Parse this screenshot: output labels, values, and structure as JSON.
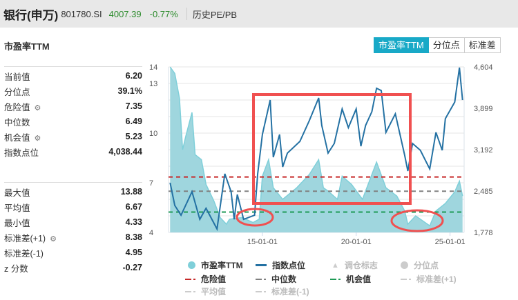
{
  "header": {
    "title": "银行(申万)",
    "code": "801780.SI",
    "price": "4007.39",
    "change": "-0.77%",
    "link": "历史PE/PB"
  },
  "subtitle": "市盈率TTM",
  "tabs": [
    {
      "label": "市盈率TTM",
      "active": true
    },
    {
      "label": "分位点",
      "active": false
    },
    {
      "label": "标准差",
      "active": false
    }
  ],
  "stats_top": [
    {
      "label": "当前值",
      "value": "6.20",
      "gear": false
    },
    {
      "label": "分位点",
      "value": "39.1%",
      "gear": false
    },
    {
      "label": "危险值",
      "value": "7.35",
      "gear": true
    },
    {
      "label": "中位数",
      "value": "6.49",
      "gear": false
    },
    {
      "label": "机会值",
      "value": "5.23",
      "gear": true
    },
    {
      "label": "指数点位",
      "value": "4,038.44",
      "gear": false
    }
  ],
  "stats_bottom": [
    {
      "label": "最大值",
      "value": "13.88",
      "gear": false
    },
    {
      "label": "平均值",
      "value": "6.67",
      "gear": false
    },
    {
      "label": "最小值",
      "value": "4.33",
      "gear": false
    },
    {
      "label": "标准差(+1)",
      "value": "8.38",
      "gear": true
    },
    {
      "label": "标准差(-1)",
      "value": "4.95",
      "gear": false
    },
    {
      "label": "z 分数",
      "value": "-0.27",
      "gear": false
    }
  ],
  "legend": [
    {
      "label": "市盈率TTM",
      "marker": "circle",
      "color": "#7fcfd9",
      "enabled": true
    },
    {
      "label": "指数点位",
      "marker": "line",
      "color": "#2471a3",
      "enabled": true
    },
    {
      "label": "调仓标志",
      "marker": "triangle",
      "color": "#cccccc",
      "enabled": false
    },
    {
      "label": "分位点",
      "marker": "circle",
      "color": "#cccccc",
      "enabled": false
    },
    {
      "label": "危险值",
      "marker": "dash",
      "color": "#c62828",
      "enabled": true
    },
    {
      "label": "中位数",
      "marker": "dash",
      "color": "#808080",
      "enabled": true
    },
    {
      "label": "机会值",
      "marker": "dash",
      "color": "#1e9a55",
      "enabled": true
    },
    {
      "label": "标准差(+1)",
      "marker": "dash",
      "color": "#cccccc",
      "enabled": false
    },
    {
      "label": "平均值",
      "marker": "dash",
      "color": "#cccccc",
      "enabled": false
    },
    {
      "label": "标准差(-1)",
      "marker": "dash",
      "color": "#cccccc",
      "enabled": false
    }
  ],
  "chart_data": {
    "type": "area+line",
    "x_range": [
      "2010-01",
      "2025-09"
    ],
    "x_ticks": [
      "15-01-01",
      "20-01-01",
      "25-01-01"
    ],
    "y_left": {
      "range": [
        4,
        14
      ],
      "ticks": [
        "14",
        "13",
        "10",
        "7",
        "4"
      ]
    },
    "y_right": {
      "range": [
        1778,
        4604
      ],
      "ticks": [
        "4,604",
        "3,899",
        "3,192",
        "2,485",
        "1,778"
      ]
    },
    "reference_lines": {
      "danger": 7.35,
      "median": 6.49,
      "opportunity": 5.23
    },
    "series": [
      {
        "name": "市盈率TTM",
        "axis": "left",
        "type": "area",
        "color": "#7fcfd9",
        "points": [
          [
            "2010-02",
            14
          ],
          [
            "2010-05",
            13.6
          ],
          [
            "2010-08",
            12.1
          ],
          [
            "2010-10",
            9
          ],
          [
            "2010-12",
            9.8
          ],
          [
            "2011-04",
            11.25
          ],
          [
            "2011-06",
            8.7
          ],
          [
            "2011-10",
            8.4
          ],
          [
            "2012-01",
            6.9
          ],
          [
            "2012-06",
            5.9
          ],
          [
            "2012-10",
            4.9
          ],
          [
            "2013-02",
            4.5
          ],
          [
            "2013-04",
            4.8
          ],
          [
            "2013-12",
            4.9
          ],
          [
            "2014-07",
            4.6
          ],
          [
            "2014-11",
            4.8
          ],
          [
            "2015-01",
            7.4
          ],
          [
            "2015-05",
            8.4
          ],
          [
            "2015-08",
            6.7
          ],
          [
            "2016-02",
            6.0
          ],
          [
            "2016-11",
            6.7
          ],
          [
            "2017-07",
            7.5
          ],
          [
            "2018-01",
            8.4
          ],
          [
            "2018-04",
            6.7
          ],
          [
            "2018-07",
            6.5
          ],
          [
            "2019-01",
            6.0
          ],
          [
            "2019-04",
            7.4
          ],
          [
            "2019-10",
            6.9
          ],
          [
            "2020-05",
            6.0
          ],
          [
            "2021-02",
            8.25
          ],
          [
            "2021-08",
            6.7
          ],
          [
            "2022-03",
            6.2
          ],
          [
            "2022-08",
            5.3
          ],
          [
            "2022-10",
            4.5
          ],
          [
            "2023-03",
            5.0
          ],
          [
            "2023-12",
            4.4
          ],
          [
            "2024-04",
            5.3
          ],
          [
            "2024-10",
            5.75
          ],
          [
            "2025-04",
            6.45
          ],
          [
            "2025-07",
            7.1
          ],
          [
            "2025-09",
            6.2
          ]
        ]
      },
      {
        "name": "指数点位",
        "axis": "right",
        "type": "line",
        "color": "#2471a3",
        "points": [
          [
            "2010-02",
            2626
          ],
          [
            "2010-05",
            2237
          ],
          [
            "2010-09",
            2072
          ],
          [
            "2011-04",
            2473
          ],
          [
            "2011-09",
            2002
          ],
          [
            "2012-01",
            2190
          ],
          [
            "2012-08",
            1837
          ],
          [
            "2013-01",
            2779
          ],
          [
            "2013-05",
            2473
          ],
          [
            "2013-07",
            2002
          ],
          [
            "2013-09",
            2426
          ],
          [
            "2014-01",
            2002
          ],
          [
            "2014-08",
            2072
          ],
          [
            "2014-10",
            2779
          ],
          [
            "2015-01",
            3450
          ],
          [
            "2015-06",
            4039
          ],
          [
            "2015-08",
            3062
          ],
          [
            "2015-12",
            3450
          ],
          [
            "2016-02",
            2897
          ],
          [
            "2016-05",
            3132
          ],
          [
            "2017-01",
            3332
          ],
          [
            "2017-07",
            3686
          ],
          [
            "2018-01",
            4074
          ],
          [
            "2018-03",
            3603
          ],
          [
            "2018-07",
            3132
          ],
          [
            "2018-11",
            3297
          ],
          [
            "2019-04",
            3886
          ],
          [
            "2019-08",
            3568
          ],
          [
            "2020-01",
            3886
          ],
          [
            "2020-04",
            3250
          ],
          [
            "2020-07",
            3603
          ],
          [
            "2020-11",
            3839
          ],
          [
            "2021-02",
            4239
          ],
          [
            "2021-05",
            4200
          ],
          [
            "2021-08",
            3486
          ],
          [
            "2022-02",
            3803
          ],
          [
            "2022-08",
            3097
          ],
          [
            "2022-10",
            2826
          ],
          [
            "2023-01",
            3297
          ],
          [
            "2023-06",
            3180
          ],
          [
            "2023-12",
            2861
          ],
          [
            "2024-04",
            3486
          ],
          [
            "2024-08",
            3180
          ],
          [
            "2024-10",
            3721
          ],
          [
            "2025-04",
            4004
          ],
          [
            "2025-07",
            4592
          ],
          [
            "2025-09",
            4039
          ]
        ]
      }
    ],
    "annotations": [
      {
        "shape": "rectangle",
        "color": "#f05050"
      },
      {
        "shape": "ellipse",
        "color": "#f05050"
      },
      {
        "shape": "ellipse",
        "color": "#f05050"
      }
    ]
  }
}
